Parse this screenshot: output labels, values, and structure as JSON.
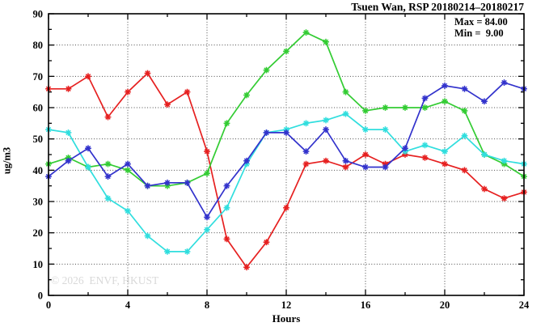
{
  "figure": {
    "title": "Tsuen Wan, RSP 20180214–20180217",
    "ylabel": "ug/m3",
    "xlabel": "Hours",
    "watermark": "© 2026  ENVF, HKUST",
    "annotation": {
      "max_label": "Max = 84.00",
      "min_label": "Min =  9.00"
    }
  },
  "chart_data": {
    "type": "line",
    "title": "Tsuen Wan, RSP 20180214–20180217",
    "xlabel": "Hours",
    "ylabel": "ug/m3",
    "xlim": [
      0,
      24
    ],
    "ylim": [
      0,
      90
    ],
    "x_major_ticks": [
      0,
      4,
      8,
      12,
      16,
      20,
      24
    ],
    "x_minor_step": 2,
    "y_major_ticks": [
      0,
      10,
      20,
      30,
      40,
      50,
      60,
      70,
      80,
      90
    ],
    "y_minor_step": 5,
    "grid": true,
    "legend": "none",
    "marker": "asterisk",
    "stats": {
      "max": 84.0,
      "min": 9.0
    },
    "x": [
      0,
      1,
      2,
      3,
      4,
      5,
      6,
      7,
      8,
      9,
      10,
      11,
      12,
      13,
      14,
      15,
      16,
      17,
      18,
      19,
      20,
      21,
      22,
      23,
      24
    ],
    "series": [
      {
        "name": "series-red",
        "color": "#e62020",
        "values": [
          66,
          66,
          70,
          57,
          65,
          71,
          61,
          65,
          46,
          18,
          9,
          17,
          28,
          42,
          43,
          41,
          45,
          42,
          45,
          44,
          42,
          40,
          34,
          31,
          33
        ]
      },
      {
        "name": "series-green",
        "color": "#33cc33",
        "values": [
          42,
          44,
          41,
          42,
          40,
          35,
          35,
          36,
          39,
          55,
          64,
          72,
          78,
          84,
          81,
          65,
          59,
          60,
          60,
          60,
          62,
          59,
          45,
          42,
          38
        ]
      },
      {
        "name": "series-cyan",
        "color": "#30dede",
        "values": [
          53,
          52,
          41,
          31,
          27,
          19,
          14,
          14,
          21,
          28,
          42,
          52,
          53,
          55,
          56,
          58,
          53,
          53,
          46,
          48,
          46,
          51,
          45,
          43,
          42
        ]
      },
      {
        "name": "series-blue",
        "color": "#3232cc",
        "values": [
          38,
          43,
          47,
          38,
          42,
          35,
          36,
          36,
          25,
          35,
          43,
          52,
          52,
          46,
          53,
          43,
          41,
          41,
          47,
          63,
          67,
          66,
          62,
          68,
          66
        ]
      }
    ]
  }
}
